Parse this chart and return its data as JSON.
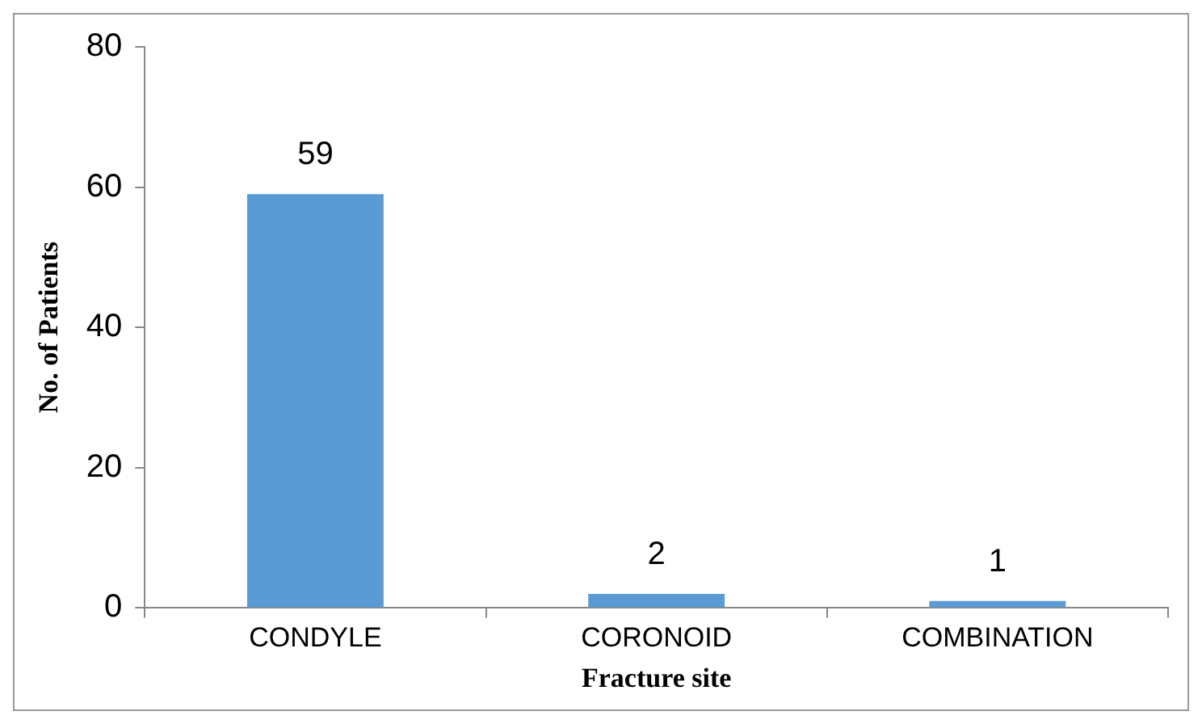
{
  "chart_data": {
    "type": "bar",
    "xlabel": "Fracture site",
    "ylabel": "No. of Patients",
    "categories": [
      "CONDYLE",
      "CORONOID",
      "COMBINATION"
    ],
    "values": [
      59,
      2,
      1
    ],
    "color": "#5b9bd5",
    "ylim": [
      0,
      80
    ],
    "yticks": [
      0,
      20,
      40,
      60,
      80
    ],
    "grid": false,
    "legend": false,
    "data_labels": true
  }
}
